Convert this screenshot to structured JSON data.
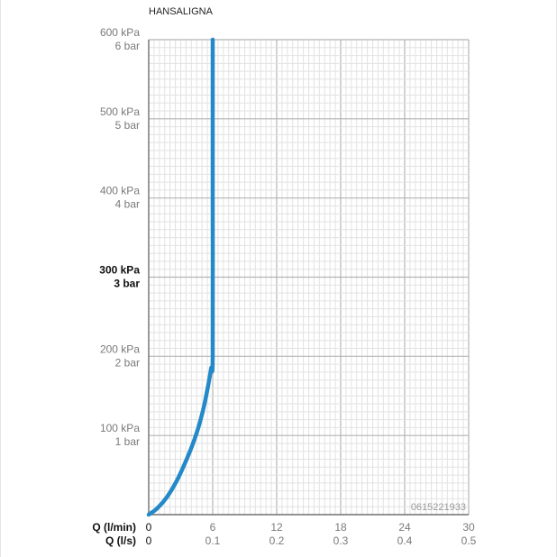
{
  "title": "HANSALIGNA",
  "code": "0615221933",
  "chart_data": {
    "type": "line",
    "title": "HANSALIGNA",
    "x_label_lmin": "Q (l/min)",
    "x_label_ls": "Q (l/s)",
    "xlim": [
      0,
      30
    ],
    "ylim": [
      0,
      6
    ],
    "x_ticks_lmin": [
      "0",
      "6",
      "12",
      "18",
      "24",
      "30"
    ],
    "x_ticks_ls": [
      "0",
      "0.1",
      "0.2",
      "0.3",
      "0.4",
      "0.5"
    ],
    "y_ticks": [
      {
        "kpa": "100 kPa",
        "bar": "1 bar",
        "value": 1,
        "bold": false
      },
      {
        "kpa": "200 kPa",
        "bar": "2 bar",
        "value": 2,
        "bold": false
      },
      {
        "kpa": "300 kPa",
        "bar": "3 bar",
        "value": 3,
        "bold": true
      },
      {
        "kpa": "400 kPa",
        "bar": "4 bar",
        "value": 4,
        "bold": false
      },
      {
        "kpa": "500 kPa",
        "bar": "5 bar",
        "value": 5,
        "bold": false
      },
      {
        "kpa": "600 kPa",
        "bar": "6 bar",
        "value": 6,
        "bold": false
      }
    ],
    "grid": true,
    "series": [
      {
        "color": "#2389c8",
        "x": [
          0,
          0.8,
          1.7,
          2.6,
          3.4,
          4.1,
          4.7,
          5.2,
          5.6,
          5.85,
          6.0,
          6.0,
          6.0
        ],
        "y": [
          0,
          0.08,
          0.22,
          0.42,
          0.65,
          0.88,
          1.12,
          1.38,
          1.65,
          1.85,
          2.0,
          4.0,
          6.0
        ]
      }
    ]
  }
}
